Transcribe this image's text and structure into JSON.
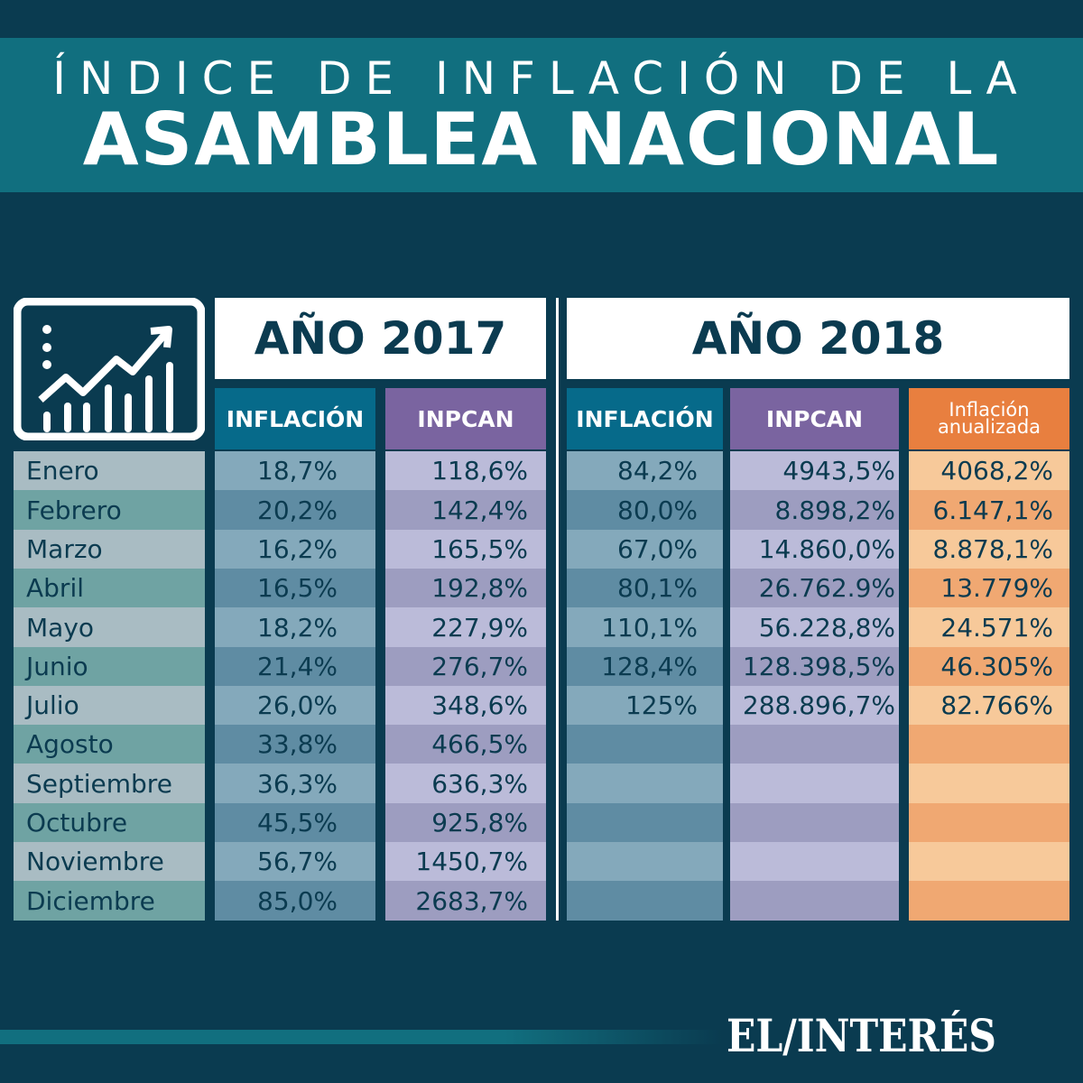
{
  "header": {
    "line1": "ÍNDICE DE INFLACIÓN DE LA",
    "line2": "ASAMBLEA NACIONAL"
  },
  "icon": "chart-growth-icon",
  "years": {
    "y2017": "AÑO 2017",
    "y2018": "AÑO 2018"
  },
  "columns": {
    "inflacion": "INFLACIÓN",
    "inpcan": "INPCAN",
    "anual_1": "Inflación",
    "anual_2": "anualizada"
  },
  "colors": {
    "bg": "#0a3b50",
    "band": "#116f7f",
    "inflacion": "#066a8a",
    "inpcan": "#7a64a0",
    "anual": "#e87f3f"
  },
  "chart_data": {
    "type": "table",
    "title": "ÍNDICE DE INFLACIÓN DE LA ASAMBLEA NACIONAL",
    "months": [
      "Enero",
      "Febrero",
      "Marzo",
      "Abril",
      "Mayo",
      "Junio",
      "Julio",
      "Agosto",
      "Septiembre",
      "Octubre",
      "Noviembre",
      "Diciembre"
    ],
    "inflacion_2017": [
      "18,7%",
      "20,2%",
      "16,2%",
      "16,5%",
      "18,2%",
      "21,4%",
      "26,0%",
      "33,8%",
      "36,3%",
      "45,5%",
      "56,7%",
      "85,0%"
    ],
    "inpcan_2017": [
      "118,6%",
      "142,4%",
      "165,5%",
      "192,8%",
      "227,9%",
      "276,7%",
      "348,6%",
      "466,5%",
      "636,3%",
      "925,8%",
      "1450,7%",
      "2683,7%"
    ],
    "inflacion_2018": [
      "84,2%",
      "80,0%",
      "67,0%",
      "80,1%",
      "110,1%",
      "128,4%",
      "125%",
      "",
      "",
      "",
      "",
      ""
    ],
    "inpcan_2018": [
      "4943,5%",
      "8.898,2%",
      "14.860,0%",
      "26.762.9%",
      "56.228,8%",
      "128.398,5%",
      "288.896,7%",
      "",
      "",
      "",
      "",
      ""
    ],
    "anualizada_2018": [
      "4068,2%",
      "6.147,1%",
      "8.878,1%",
      "13.779%",
      "24.571%",
      "46.305%",
      "82.766%",
      "",
      "",
      "",
      "",
      ""
    ]
  },
  "footer": {
    "logo": "EL/INTERÉS"
  }
}
